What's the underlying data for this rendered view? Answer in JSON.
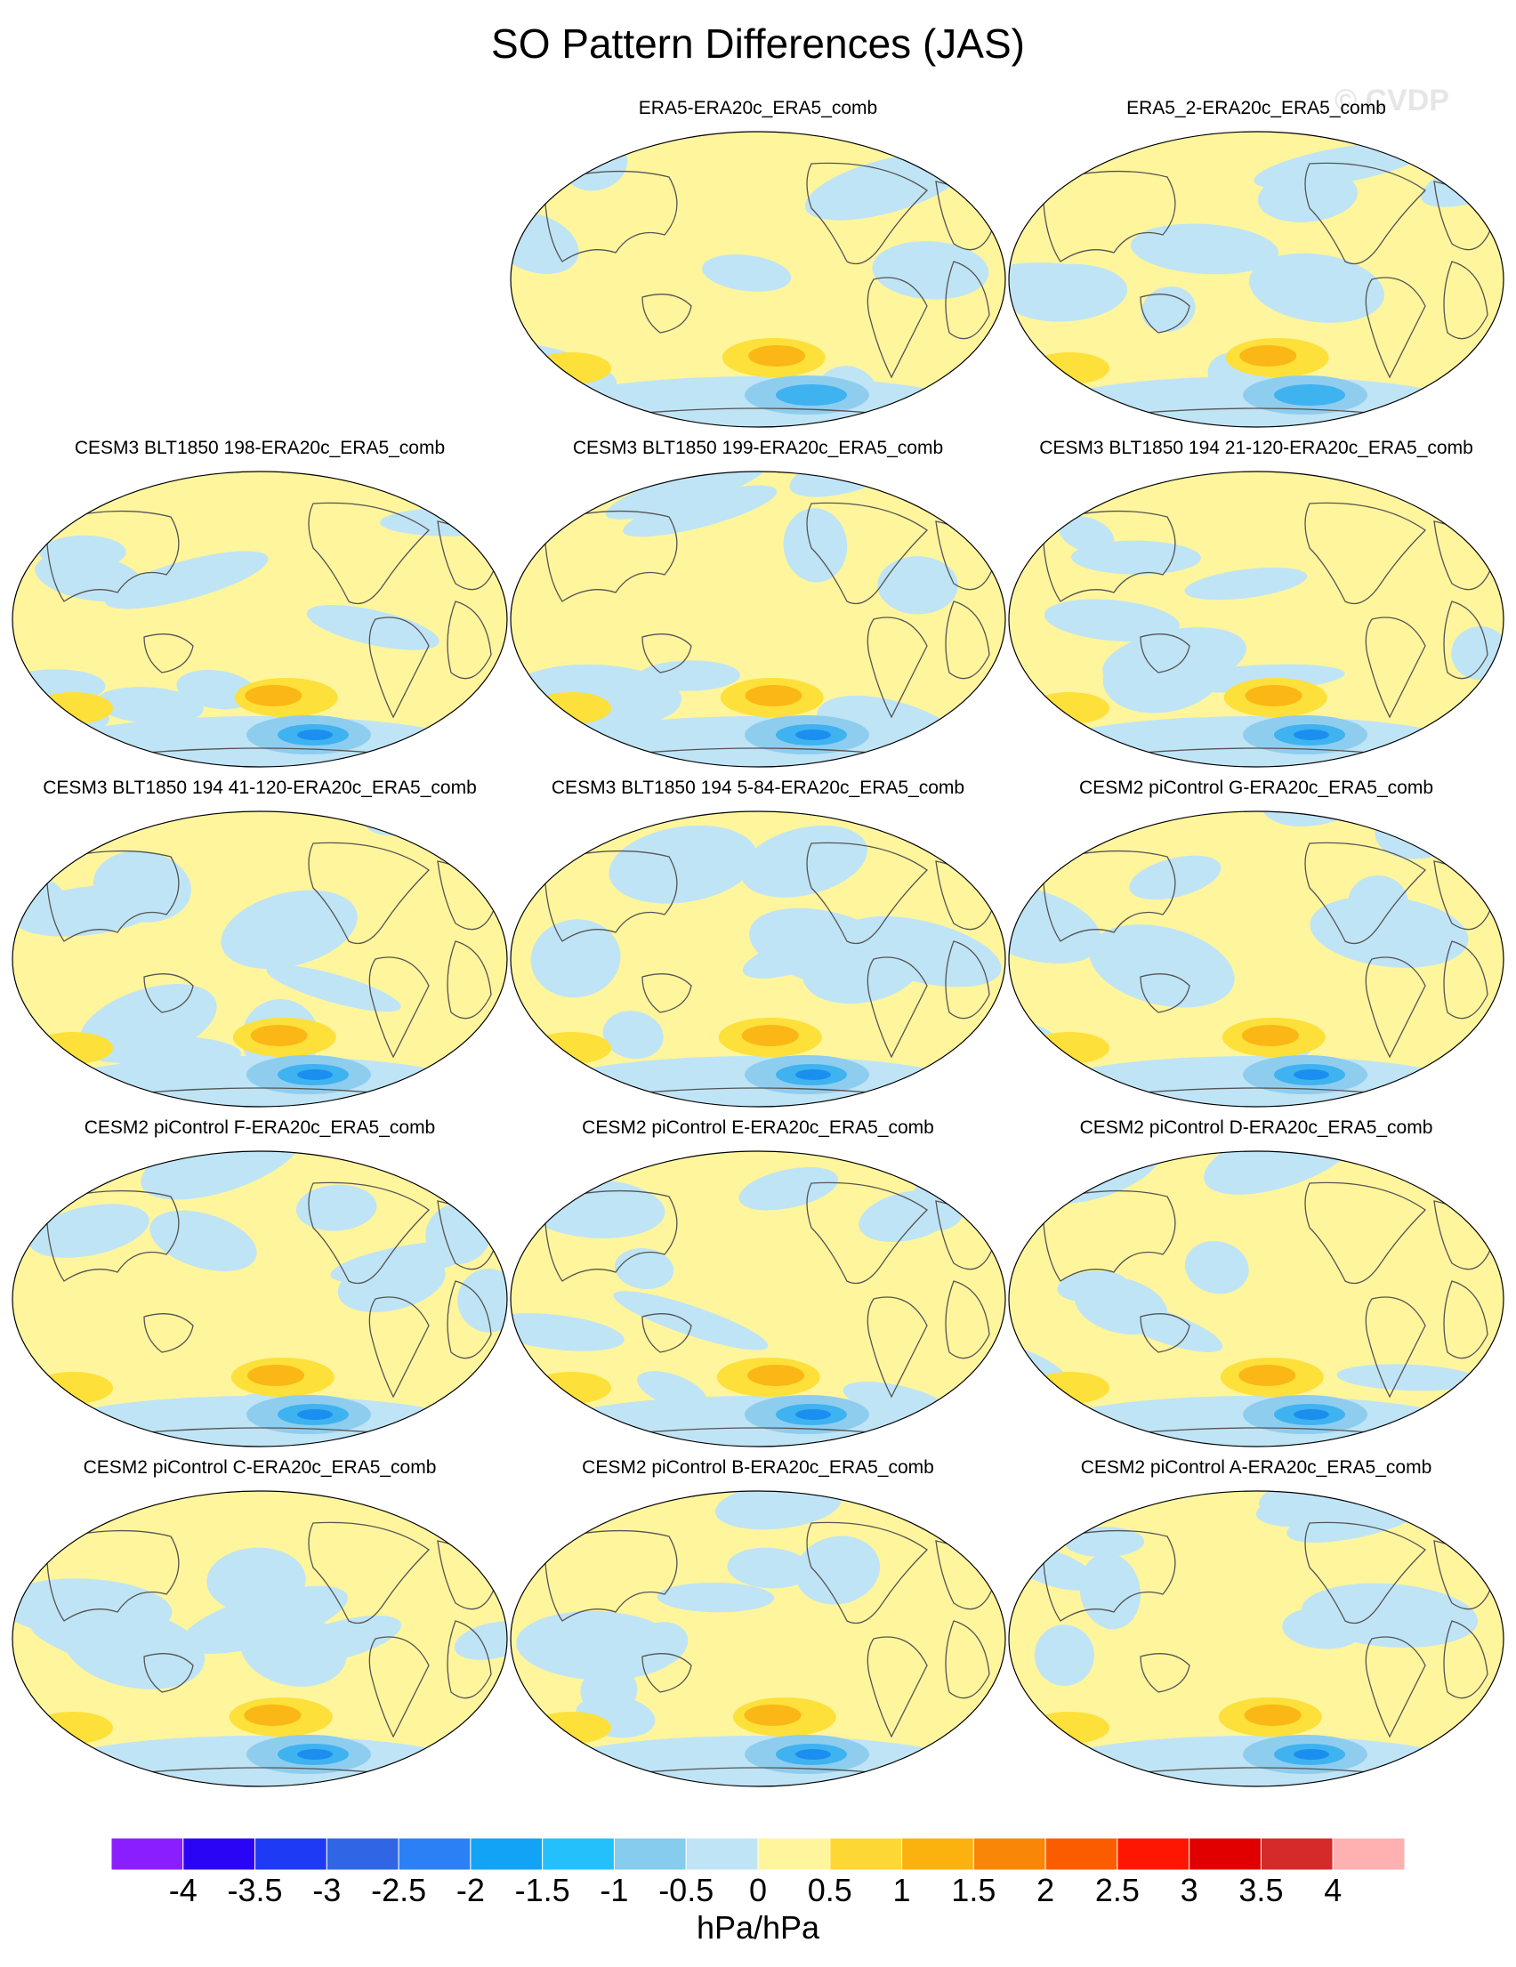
{
  "title": "SO Pattern Differences (JAS)",
  "watermark": "© CVDP",
  "colors": {
    "pos_weak": "#fff59d",
    "pos_mid": "#fde03a",
    "pos_strong": "#fbb715",
    "pos_stronger": "#f7941d",
    "neg_weak": "#bfe4f5",
    "neg_mid": "#8fcdef",
    "neg_strong": "#3fb2f0",
    "neg_stronger": "#1a8ff0",
    "land_outline": "#555555"
  },
  "panels": [
    {
      "label": "ERA5-ERA20c_ERA5_comb"
    },
    {
      "label": "ERA5_2-ERA20c_ERA5_comb"
    },
    {
      "label": "CESM3 BLT1850 198-ERA20c_ERA5_comb"
    },
    {
      "label": "CESM3 BLT1850 199-ERA20c_ERA5_comb"
    },
    {
      "label": "CESM3 BLT1850 194 21-120-ERA20c_ERA5_comb"
    },
    {
      "label": "CESM3 BLT1850 194 41-120-ERA20c_ERA5_comb"
    },
    {
      "label": "CESM3 BLT1850 194 5-84-ERA20c_ERA5_comb"
    },
    {
      "label": "CESM2 piControl G-ERA20c_ERA5_comb"
    },
    {
      "label": "CESM2 piControl F-ERA20c_ERA5_comb"
    },
    {
      "label": "CESM2 piControl E-ERA20c_ERA5_comb"
    },
    {
      "label": "CESM2 piControl D-ERA20c_ERA5_comb"
    },
    {
      "label": "CESM2 piControl C-ERA20c_ERA5_comb"
    },
    {
      "label": "CESM2 piControl B-ERA20c_ERA5_comb"
    },
    {
      "label": "CESM2 piControl A-ERA20c_ERA5_comb"
    }
  ],
  "colorbar": {
    "colors": [
      "#8b1eff",
      "#2a05f5",
      "#1e3af5",
      "#3066e6",
      "#2b80f5",
      "#12a3f6",
      "#23c0fb",
      "#86ccee",
      "#bfe4f5",
      "#fff59d",
      "#fdd834",
      "#fbb20f",
      "#f98607",
      "#fc5c00",
      "#ff1600",
      "#e00000",
      "#d42a2a",
      "#ffb0b0"
    ],
    "ticks": [
      "-4",
      "-3.5",
      "-3",
      "-2.5",
      "-2",
      "-1.5",
      "-1",
      "-0.5",
      "0",
      "0.5",
      "1",
      "1.5",
      "2",
      "2.5",
      "3",
      "3.5",
      "4"
    ],
    "units": "hPa/hPa"
  }
}
